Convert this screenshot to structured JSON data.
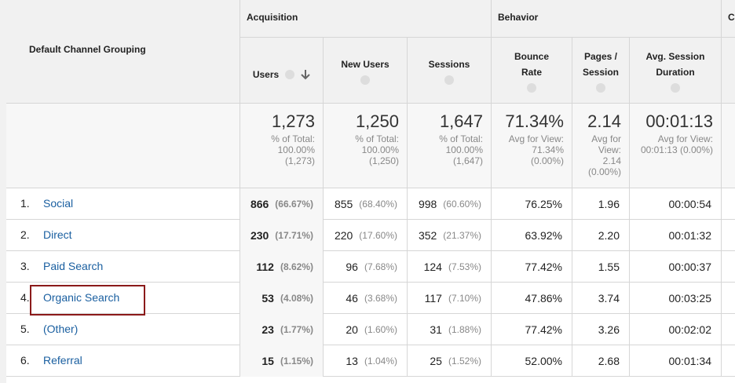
{
  "header": {
    "first_column": "Default Channel Grouping",
    "groups": [
      "Acquisition",
      "Behavior",
      "Co"
    ],
    "columns": [
      "Users",
      "New Users",
      "Sessions",
      "Bounce Rate",
      "Pages / Session",
      "Avg. Session Duration"
    ]
  },
  "totals": [
    {
      "value": "1,273",
      "detail": "% of Total: 100.00% (1,273)"
    },
    {
      "value": "1,250",
      "detail": "% of Total: 100.00% (1,250)"
    },
    {
      "value": "1,647",
      "detail": "% of Total: 100.00% (1,647)"
    },
    {
      "value": "71.34%",
      "detail": "Avg for View: 71.34% (0.00%)"
    },
    {
      "value": "2.14",
      "detail": "Avg for View: 2.14 (0.00%)"
    },
    {
      "value": "00:01:13",
      "detail": "Avg for View: 00:01:13 (0.00%)"
    }
  ],
  "rows": [
    {
      "index": "1.",
      "channel": "Social",
      "users": "866",
      "users_pct": "(66.67%)",
      "new_users": "855",
      "new_users_pct": "(68.40%)",
      "sessions": "998",
      "sessions_pct": "(60.60%)",
      "bounce_rate": "76.25%",
      "pages_session": "1.96",
      "avg_duration": "00:00:54"
    },
    {
      "index": "2.",
      "channel": "Direct",
      "users": "230",
      "users_pct": "(17.71%)",
      "new_users": "220",
      "new_users_pct": "(17.60%)",
      "sessions": "352",
      "sessions_pct": "(21.37%)",
      "bounce_rate": "63.92%",
      "pages_session": "2.20",
      "avg_duration": "00:01:32"
    },
    {
      "index": "3.",
      "channel": "Paid Search",
      "users": "112",
      "users_pct": "(8.62%)",
      "new_users": "96",
      "new_users_pct": "(7.68%)",
      "sessions": "124",
      "sessions_pct": "(7.53%)",
      "bounce_rate": "77.42%",
      "pages_session": "1.55",
      "avg_duration": "00:00:37"
    },
    {
      "index": "4.",
      "channel": "Organic Search",
      "users": "53",
      "users_pct": "(4.08%)",
      "new_users": "46",
      "new_users_pct": "(3.68%)",
      "sessions": "117",
      "sessions_pct": "(7.10%)",
      "bounce_rate": "47.86%",
      "pages_session": "3.74",
      "avg_duration": "00:03:25"
    },
    {
      "index": "5.",
      "channel": "(Other)",
      "users": "23",
      "users_pct": "(1.77%)",
      "new_users": "20",
      "new_users_pct": "(1.60%)",
      "sessions": "31",
      "sessions_pct": "(1.88%)",
      "bounce_rate": "77.42%",
      "pages_session": "3.26",
      "avg_duration": "00:02:02"
    },
    {
      "index": "6.",
      "channel": "Referral",
      "users": "15",
      "users_pct": "(1.15%)",
      "new_users": "13",
      "new_users_pct": "(1.04%)",
      "sessions": "25",
      "sessions_pct": "(1.52%)",
      "bounce_rate": "52.00%",
      "pages_session": "2.68",
      "avg_duration": "00:01:34"
    }
  ]
}
